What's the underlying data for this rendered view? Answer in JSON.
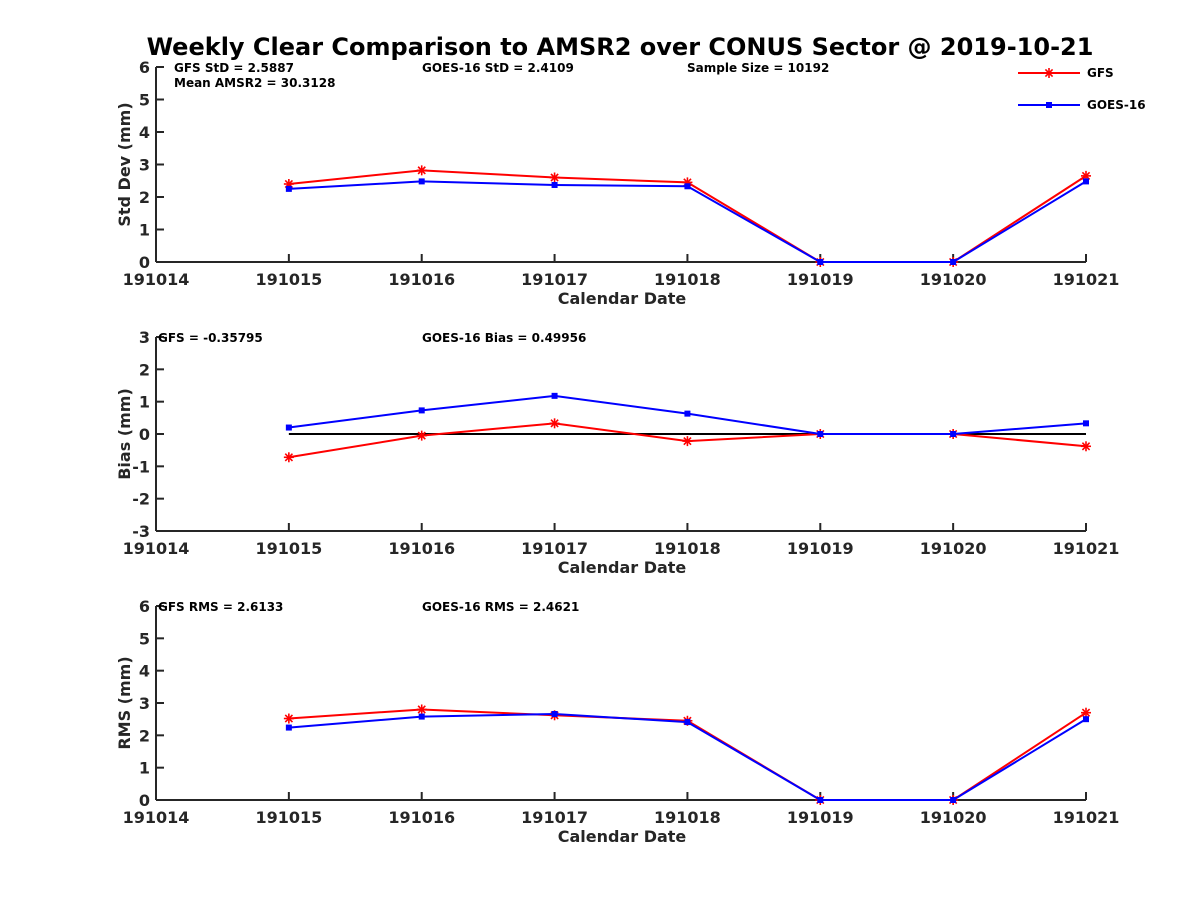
{
  "title": "Weekly Clear Comparison to AMSR2 over CONUS Sector @ 2019-10-21",
  "legend": {
    "placement": "top-right",
    "entries": [
      {
        "name": "GFS",
        "color": "#ff0000",
        "marker": "asterisk"
      },
      {
        "name": "GOES-16",
        "color": "#0000ff",
        "marker": "square"
      }
    ]
  },
  "chart_data": [
    {
      "type": "line",
      "xlabel": "Calendar Date",
      "ylabel": "Std Dev (mm)",
      "x": [
        "191014",
        "191015",
        "191016",
        "191017",
        "191018",
        "191019",
        "191020",
        "191021"
      ],
      "ylim": [
        0,
        6
      ],
      "yticks": [
        "0",
        "1",
        "2",
        "3",
        "4",
        "5",
        "6"
      ],
      "annotations": [
        "GFS StD = 2.5887",
        "GOES-16 StD = 2.4109",
        "Sample Size = 10192",
        "Mean AMSR2 = 30.3128"
      ],
      "series": [
        {
          "name": "GFS",
          "color": "#ff0000",
          "x": [
            "191015",
            "191016",
            "191017",
            "191018",
            "191019",
            "191020",
            "191021"
          ],
          "values": [
            2.4,
            2.82,
            2.6,
            2.45,
            0,
            0,
            2.65
          ]
        },
        {
          "name": "GOES-16",
          "color": "#0000ff",
          "x": [
            "191015",
            "191016",
            "191017",
            "191018",
            "191019",
            "191020",
            "191021"
          ],
          "values": [
            2.25,
            2.48,
            2.37,
            2.33,
            0,
            0,
            2.48
          ]
        }
      ]
    },
    {
      "type": "line",
      "xlabel": "Calendar Date",
      "ylabel": "Bias (mm)",
      "x": [
        "191014",
        "191015",
        "191016",
        "191017",
        "191018",
        "191019",
        "191020",
        "191021"
      ],
      "ylim": [
        -3,
        3
      ],
      "yticks": [
        "-3",
        "-2",
        "-1",
        "0",
        "1",
        "2",
        "3"
      ],
      "reference_line": 0,
      "annotations": [
        "GFS = -0.35795",
        "GOES-16 Bias  = 0.49956"
      ],
      "series": [
        {
          "name": "GFS",
          "color": "#ff0000",
          "x": [
            "191015",
            "191016",
            "191017",
            "191018",
            "191019",
            "191020",
            "191021"
          ],
          "values": [
            -0.72,
            -0.05,
            0.33,
            -0.22,
            0,
            0,
            -0.38
          ]
        },
        {
          "name": "GOES-16",
          "color": "#0000ff",
          "x": [
            "191015",
            "191016",
            "191017",
            "191018",
            "191019",
            "191020",
            "191021"
          ],
          "values": [
            0.2,
            0.73,
            1.18,
            0.63,
            0,
            0,
            0.33
          ]
        }
      ]
    },
    {
      "type": "line",
      "xlabel": "Calendar Date",
      "ylabel": "RMS (mm)",
      "x": [
        "191014",
        "191015",
        "191016",
        "191017",
        "191018",
        "191019",
        "191020",
        "191021"
      ],
      "ylim": [
        0,
        6
      ],
      "yticks": [
        "0",
        "1",
        "2",
        "3",
        "4",
        "5",
        "6"
      ],
      "annotations": [
        "GFS RMS = 2.6133",
        "GOES-16 RMS = 2.4621"
      ],
      "series": [
        {
          "name": "GFS",
          "color": "#ff0000",
          "x": [
            "191015",
            "191016",
            "191017",
            "191018",
            "191019",
            "191020",
            "191021"
          ],
          "values": [
            2.52,
            2.8,
            2.62,
            2.45,
            0,
            0,
            2.7
          ]
        },
        {
          "name": "GOES-16",
          "color": "#0000ff",
          "x": [
            "191015",
            "191016",
            "191017",
            "191018",
            "191019",
            "191020",
            "191021"
          ],
          "values": [
            2.24,
            2.58,
            2.66,
            2.41,
            0,
            0,
            2.5
          ]
        }
      ]
    }
  ]
}
